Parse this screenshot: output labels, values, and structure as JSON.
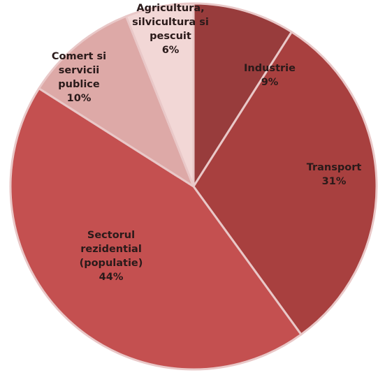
{
  "chart_data": {
    "type": "pie",
    "title": "",
    "slices": [
      {
        "label_lines": [
          "Industrie",
          "9%"
        ],
        "value": 9,
        "color": "#983c3c"
      },
      {
        "label_lines": [
          "Transport",
          "31%"
        ],
        "value": 31,
        "color": "#a8403f"
      },
      {
        "label_lines": [
          "Sectorul",
          "rezidential",
          "(populatie)",
          "44%"
        ],
        "value": 44,
        "color": "#c45050"
      },
      {
        "label_lines": [
          "Comert si",
          "servicii",
          "publice",
          "10%"
        ],
        "value": 10,
        "color": "#dda9a7"
      },
      {
        "label_lines": [
          "Agricultura,",
          "silvicultura si",
          "pescuit",
          "6%"
        ],
        "value": 6,
        "color": "#f2d7d6"
      }
    ],
    "start_position": "12 o'clock",
    "direction": "clockwise",
    "legend": "none"
  }
}
